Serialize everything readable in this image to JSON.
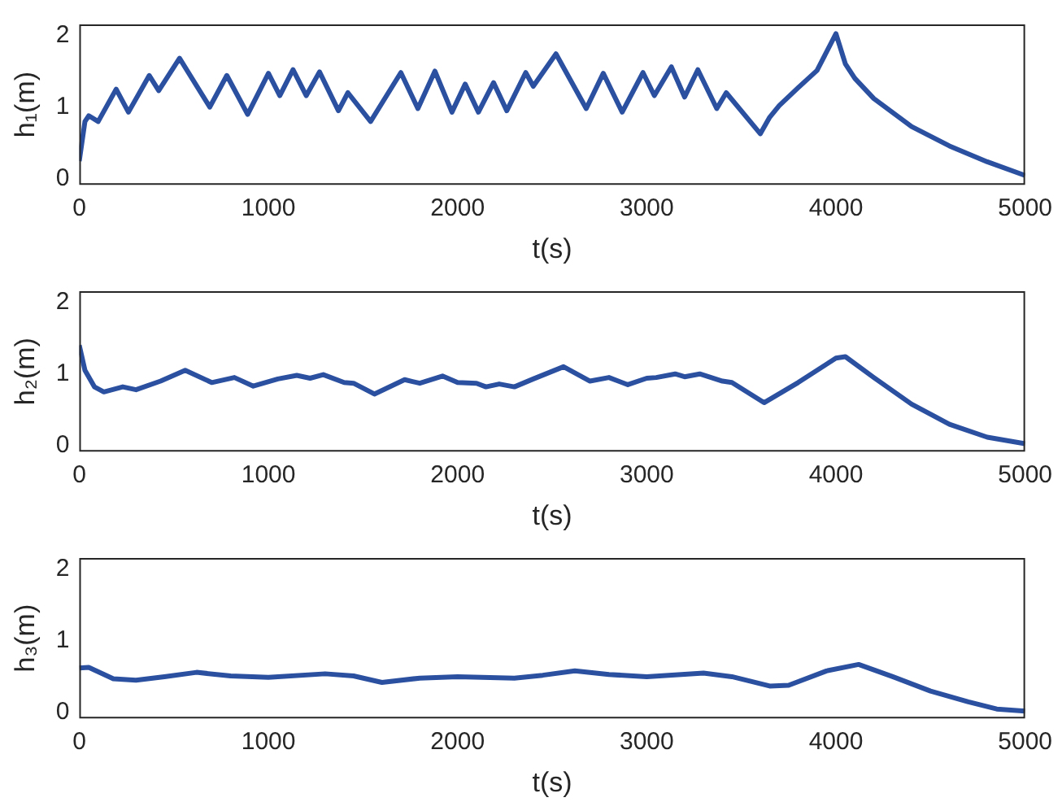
{
  "chart_data": [
    {
      "type": "line",
      "xlabel": "t(s)",
      "ylabel": "h₁(m)",
      "xlim": [
        0,
        5000
      ],
      "xticks": [
        0,
        1000,
        2000,
        3000,
        4000,
        5000
      ],
      "ylim": [
        -0.08,
        2.15
      ],
      "yticks": [
        0,
        1,
        2
      ],
      "grid": false,
      "legend": false,
      "marker": "none",
      "line_style": "solid",
      "series": [
        {
          "color": "#2b50a0",
          "x": [
            0,
            30,
            50,
            100,
            195,
            260,
            370,
            420,
            530,
            690,
            780,
            890,
            1000,
            1060,
            1130,
            1200,
            1270,
            1370,
            1420,
            1540,
            1700,
            1790,
            1880,
            1970,
            2040,
            2110,
            2190,
            2260,
            2360,
            2400,
            2520,
            2680,
            2770,
            2870,
            2980,
            3040,
            3130,
            3200,
            3270,
            3370,
            3420,
            3600,
            3650,
            3700,
            3800,
            3900,
            4000,
            4050,
            4100,
            4200,
            4400,
            4600,
            4800,
            5000
          ],
          "values": [
            0.25,
            0.8,
            0.88,
            0.8,
            1.25,
            0.93,
            1.44,
            1.23,
            1.68,
            1.0,
            1.44,
            0.9,
            1.47,
            1.16,
            1.52,
            1.16,
            1.49,
            0.95,
            1.2,
            0.8,
            1.48,
            0.98,
            1.5,
            0.93,
            1.32,
            0.93,
            1.34,
            0.95,
            1.48,
            1.29,
            1.74,
            0.98,
            1.47,
            0.93,
            1.48,
            1.16,
            1.56,
            1.14,
            1.52,
            0.98,
            1.2,
            0.63,
            0.86,
            1.02,
            1.27,
            1.51,
            2.02,
            1.6,
            1.4,
            1.12,
            0.73,
            0.46,
            0.24,
            0.05
          ]
        }
      ]
    },
    {
      "type": "line",
      "xlabel": "t(s)",
      "ylabel": "h₂(m)",
      "xlim": [
        0,
        5000
      ],
      "xticks": [
        0,
        1000,
        2000,
        3000,
        4000,
        5000
      ],
      "ylim": [
        -0.08,
        2.15
      ],
      "yticks": [
        0,
        1,
        2
      ],
      "grid": false,
      "legend": false,
      "marker": "none",
      "line_style": "solid",
      "series": [
        {
          "color": "#2b50a0",
          "x": [
            0,
            30,
            80,
            130,
            230,
            300,
            430,
            560,
            700,
            820,
            920,
            1050,
            1150,
            1220,
            1290,
            1400,
            1450,
            1560,
            1720,
            1800,
            1920,
            2000,
            2100,
            2150,
            2220,
            2300,
            2400,
            2560,
            2700,
            2800,
            2900,
            3000,
            3050,
            3150,
            3200,
            3280,
            3400,
            3450,
            3620,
            3800,
            4000,
            4050,
            4200,
            4400,
            4600,
            4800,
            5000
          ],
          "values": [
            1.4,
            1.05,
            0.82,
            0.75,
            0.82,
            0.78,
            0.9,
            1.05,
            0.88,
            0.95,
            0.83,
            0.93,
            0.98,
            0.94,
            0.99,
            0.88,
            0.87,
            0.72,
            0.92,
            0.87,
            0.97,
            0.88,
            0.87,
            0.82,
            0.86,
            0.82,
            0.93,
            1.1,
            0.9,
            0.95,
            0.85,
            0.94,
            0.95,
            1.0,
            0.96,
            1.0,
            0.9,
            0.88,
            0.6,
            0.88,
            1.22,
            1.24,
            0.95,
            0.58,
            0.3,
            0.12,
            0.03
          ]
        }
      ]
    },
    {
      "type": "line",
      "xlabel": "t(s)",
      "ylabel": "h₃(m)",
      "xlim": [
        0,
        5000
      ],
      "xticks": [
        0,
        1000,
        2000,
        3000,
        4000,
        5000
      ],
      "ylim": [
        -0.08,
        2.15
      ],
      "yticks": [
        0,
        1,
        2
      ],
      "grid": false,
      "legend": false,
      "marker": "none",
      "line_style": "solid",
      "series": [
        {
          "color": "#2b50a0",
          "x": [
            0,
            50,
            180,
            300,
            450,
            620,
            800,
            1000,
            1300,
            1450,
            1600,
            1800,
            2000,
            2300,
            2450,
            2620,
            2800,
            3000,
            3300,
            3450,
            3650,
            3750,
            3950,
            4120,
            4300,
            4500,
            4700,
            4850,
            5000
          ],
          "values": [
            0.62,
            0.63,
            0.47,
            0.45,
            0.5,
            0.56,
            0.51,
            0.49,
            0.54,
            0.51,
            0.42,
            0.48,
            0.5,
            0.48,
            0.52,
            0.58,
            0.53,
            0.5,
            0.55,
            0.5,
            0.37,
            0.38,
            0.58,
            0.67,
            0.5,
            0.3,
            0.15,
            0.05,
            0.02
          ]
        }
      ]
    }
  ]
}
